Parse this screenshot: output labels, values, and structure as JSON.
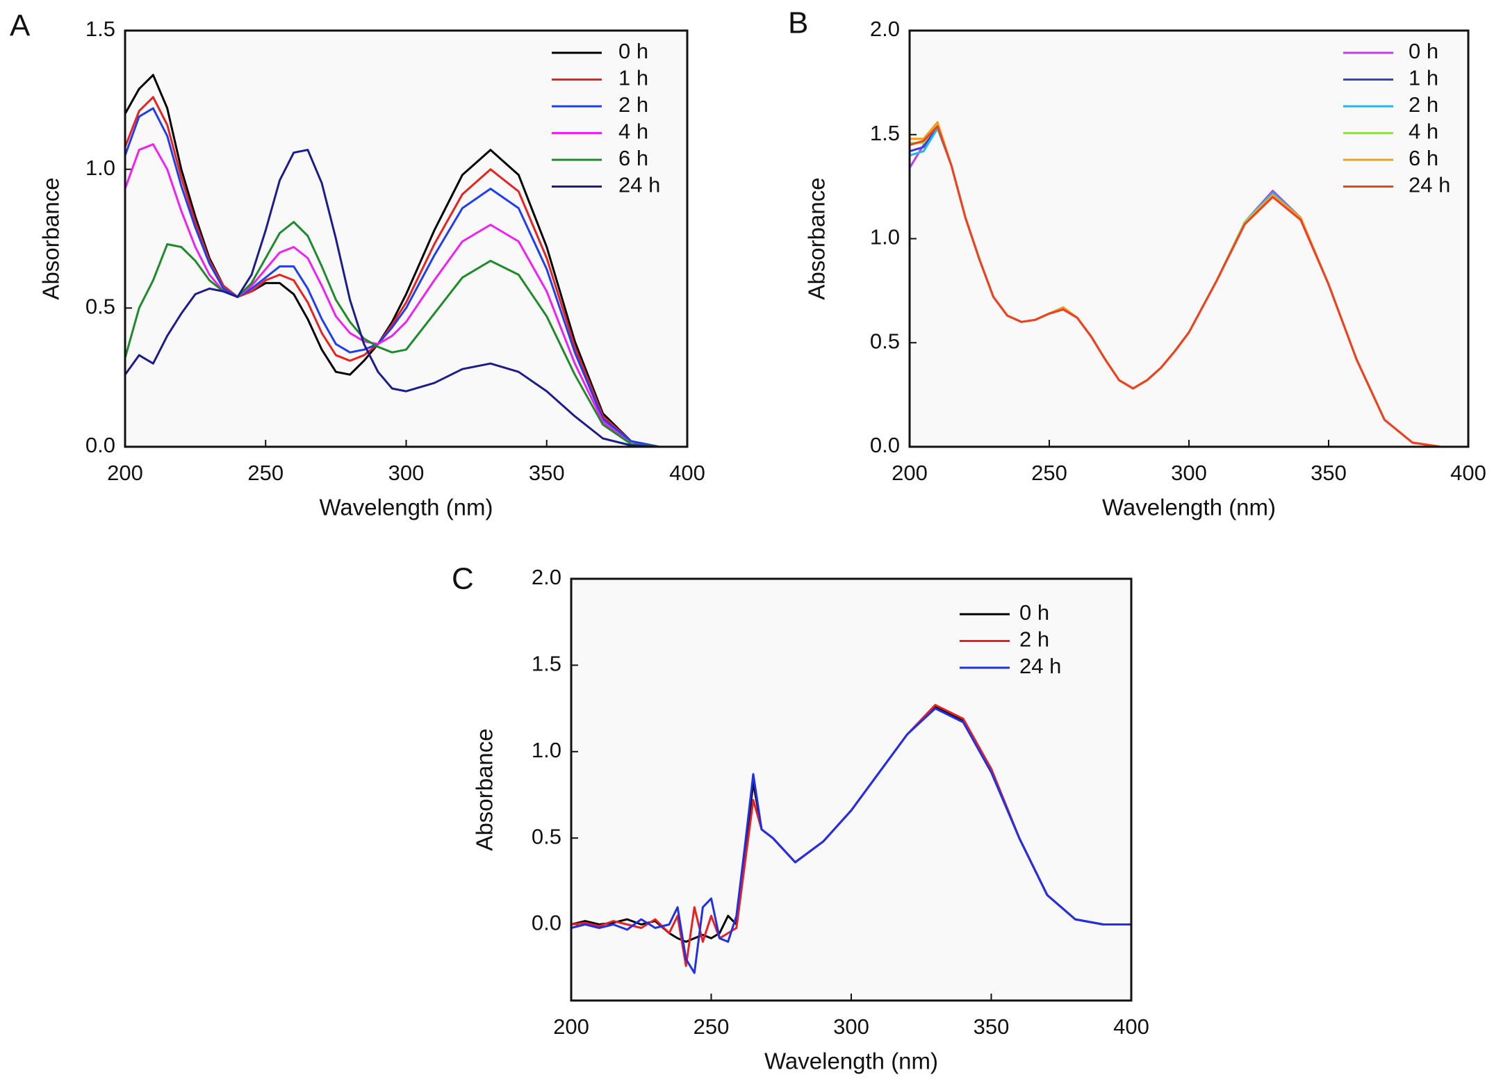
{
  "chart_data": [
    {
      "type": "line",
      "panel_label": "A",
      "xlabel": "Wavelength (nm)",
      "ylabel": "Absorbance",
      "x": [
        200,
        205,
        210,
        215,
        220,
        225,
        230,
        235,
        240,
        245,
        250,
        255,
        260,
        265,
        270,
        275,
        280,
        285,
        290,
        295,
        300,
        310,
        320,
        330,
        340,
        350,
        360,
        370,
        380,
        390,
        400
      ],
      "xlim": [
        200,
        400
      ],
      "xticks": [
        200,
        250,
        300,
        350,
        400
      ],
      "ylim": [
        0,
        1.5
      ],
      "yticks": [
        {
          "value": 0,
          "label": "0.0"
        },
        0.5,
        {
          "value": 1,
          "label": "1.0"
        },
        1.5
      ],
      "legend": "upper right",
      "series": [
        {
          "name": "0 h",
          "color": "#000000",
          "values": [
            1.2,
            1.29,
            1.34,
            1.22,
            1.0,
            0.83,
            0.68,
            0.58,
            0.54,
            0.56,
            0.59,
            0.59,
            0.55,
            0.46,
            0.35,
            0.27,
            0.26,
            0.31,
            0.37,
            0.45,
            0.55,
            0.78,
            0.98,
            1.07,
            0.98,
            0.72,
            0.38,
            0.12,
            0.02,
            0,
            0
          ]
        },
        {
          "name": "1 h",
          "color": "#e8221c",
          "values": [
            1.08,
            1.21,
            1.26,
            1.16,
            0.97,
            0.81,
            0.67,
            0.58,
            0.54,
            0.56,
            0.6,
            0.62,
            0.6,
            0.52,
            0.41,
            0.33,
            0.31,
            0.33,
            0.37,
            0.44,
            0.52,
            0.73,
            0.91,
            1.0,
            0.92,
            0.68,
            0.36,
            0.11,
            0.02,
            0,
            0
          ]
        },
        {
          "name": "2 h",
          "color": "#1f3ef0",
          "values": [
            1.05,
            1.19,
            1.22,
            1.12,
            0.94,
            0.79,
            0.66,
            0.57,
            0.54,
            0.57,
            0.61,
            0.65,
            0.65,
            0.57,
            0.46,
            0.37,
            0.34,
            0.35,
            0.37,
            0.43,
            0.5,
            0.69,
            0.86,
            0.93,
            0.86,
            0.64,
            0.34,
            0.1,
            0.02,
            0,
            0
          ]
        },
        {
          "name": "4 h",
          "color": "#f020f0",
          "values": [
            0.93,
            1.07,
            1.09,
            1.0,
            0.85,
            0.72,
            0.62,
            0.56,
            0.54,
            0.58,
            0.64,
            0.7,
            0.72,
            0.68,
            0.58,
            0.47,
            0.41,
            0.38,
            0.37,
            0.4,
            0.45,
            0.6,
            0.74,
            0.8,
            0.74,
            0.56,
            0.3,
            0.09,
            0.01,
            0,
            0
          ]
        },
        {
          "name": "6 h",
          "color": "#1e8a2a",
          "values": [
            0.32,
            0.5,
            0.6,
            0.73,
            0.72,
            0.67,
            0.6,
            0.56,
            0.54,
            0.59,
            0.68,
            0.77,
            0.81,
            0.76,
            0.65,
            0.53,
            0.45,
            0.39,
            0.36,
            0.34,
            0.35,
            0.48,
            0.61,
            0.67,
            0.62,
            0.47,
            0.26,
            0.08,
            0.01,
            0,
            0
          ]
        },
        {
          "name": "24 h",
          "color": "#1c1c8c",
          "values": [
            0.26,
            0.33,
            0.3,
            0.4,
            0.48,
            0.55,
            0.57,
            0.56,
            0.54,
            0.62,
            0.78,
            0.96,
            1.06,
            1.07,
            0.95,
            0.75,
            0.53,
            0.37,
            0.27,
            0.21,
            0.2,
            0.23,
            0.28,
            0.3,
            0.27,
            0.2,
            0.11,
            0.03,
            0.005,
            0,
            0
          ]
        }
      ]
    },
    {
      "type": "line",
      "panel_label": "B",
      "xlabel": "Wavelength (nm)",
      "ylabel": "Absorbance",
      "x": [
        200,
        205,
        210,
        215,
        220,
        225,
        230,
        235,
        240,
        245,
        250,
        255,
        260,
        265,
        270,
        275,
        280,
        285,
        290,
        295,
        300,
        310,
        320,
        330,
        340,
        350,
        360,
        370,
        380,
        390,
        400
      ],
      "xlim": [
        200,
        400
      ],
      "xticks": [
        200,
        250,
        300,
        350,
        400
      ],
      "ylim": [
        0,
        2
      ],
      "yticks": [
        {
          "value": 0,
          "label": "0.0"
        },
        0.5,
        {
          "value": 1,
          "label": "1.0"
        },
        1.5,
        {
          "value": 2,
          "label": "2.0"
        }
      ],
      "legend": "upper right",
      "series": [
        {
          "name": "0 h",
          "color": "#c040e8",
          "values": [
            1.34,
            1.45,
            1.54,
            1.35,
            1.1,
            0.9,
            0.72,
            0.63,
            0.6,
            0.61,
            0.64,
            0.66,
            0.62,
            0.53,
            0.42,
            0.32,
            0.28,
            0.32,
            0.38,
            0.46,
            0.55,
            0.8,
            1.08,
            1.23,
            1.1,
            0.78,
            0.42,
            0.13,
            0.02,
            0,
            0
          ]
        },
        {
          "name": "1 h",
          "color": "#3b3bd8",
          "values": [
            1.42,
            1.44,
            1.54,
            1.35,
            1.1,
            0.9,
            0.72,
            0.63,
            0.6,
            0.61,
            0.64,
            0.66,
            0.62,
            0.53,
            0.42,
            0.32,
            0.28,
            0.32,
            0.38,
            0.46,
            0.55,
            0.8,
            1.08,
            1.22,
            1.1,
            0.78,
            0.42,
            0.13,
            0.02,
            0,
            0
          ]
        },
        {
          "name": "2 h",
          "color": "#20b8e8",
          "values": [
            1.4,
            1.42,
            1.53,
            1.35,
            1.1,
            0.9,
            0.72,
            0.63,
            0.6,
            0.61,
            0.64,
            0.66,
            0.62,
            0.53,
            0.42,
            0.32,
            0.28,
            0.32,
            0.38,
            0.46,
            0.55,
            0.8,
            1.08,
            1.22,
            1.1,
            0.78,
            0.42,
            0.13,
            0.02,
            0,
            0
          ]
        },
        {
          "name": "4 h",
          "color": "#90e050",
          "values": [
            1.46,
            1.46,
            1.55,
            1.35,
            1.1,
            0.9,
            0.72,
            0.63,
            0.6,
            0.61,
            0.64,
            0.67,
            0.62,
            0.53,
            0.42,
            0.32,
            0.28,
            0.32,
            0.38,
            0.46,
            0.55,
            0.8,
            1.08,
            1.21,
            1.1,
            0.78,
            0.42,
            0.13,
            0.02,
            0,
            0
          ]
        },
        {
          "name": "6 h",
          "color": "#f0a020",
          "values": [
            1.48,
            1.48,
            1.56,
            1.35,
            1.1,
            0.9,
            0.72,
            0.63,
            0.6,
            0.61,
            0.64,
            0.67,
            0.62,
            0.53,
            0.42,
            0.32,
            0.28,
            0.32,
            0.38,
            0.46,
            0.55,
            0.8,
            1.07,
            1.21,
            1.1,
            0.78,
            0.42,
            0.13,
            0.02,
            0,
            0
          ]
        },
        {
          "name": "24 h",
          "color": "#f04020",
          "values": [
            1.45,
            1.47,
            1.54,
            1.35,
            1.1,
            0.9,
            0.72,
            0.63,
            0.6,
            0.61,
            0.64,
            0.66,
            0.62,
            0.53,
            0.42,
            0.32,
            0.28,
            0.32,
            0.38,
            0.46,
            0.55,
            0.8,
            1.07,
            1.2,
            1.09,
            0.78,
            0.42,
            0.13,
            0.02,
            0,
            0
          ]
        }
      ]
    },
    {
      "type": "line",
      "panel_label": "C",
      "xlabel": "Wavelength (nm)",
      "ylabel": "Absorbance",
      "x": [
        200,
        205,
        210,
        215,
        220,
        225,
        230,
        235,
        238,
        241,
        244,
        247,
        250,
        253,
        256,
        259,
        262,
        265,
        268,
        272,
        280,
        290,
        300,
        310,
        320,
        330,
        340,
        350,
        360,
        370,
        380,
        390,
        400
      ],
      "xlim": [
        200,
        400
      ],
      "xticks": [
        200,
        250,
        300,
        350,
        400
      ],
      "ylim": [
        -0.44,
        2
      ],
      "yticks": [
        {
          "value": 0,
          "label": "0.0"
        },
        0.5,
        {
          "value": 1,
          "label": "1.0"
        },
        1.5,
        {
          "value": 2,
          "label": "2.0"
        }
      ],
      "legend": "upper right",
      "series": [
        {
          "name": "0 h",
          "color": "#000000",
          "values": [
            0,
            0.02,
            0,
            0.01,
            0.03,
            0,
            0.02,
            -0.05,
            -0.08,
            -0.1,
            -0.08,
            -0.06,
            -0.08,
            -0.05,
            0.05,
            0,
            0.4,
            0.82,
            0.55,
            0.5,
            0.36,
            0.48,
            0.66,
            0.88,
            1.1,
            1.26,
            1.18,
            0.9,
            0.5,
            0.17,
            0.03,
            0,
            0
          ]
        },
        {
          "name": "2 h",
          "color": "#e82020",
          "values": [
            0,
            0.01,
            -0.01,
            0.02,
            0,
            -0.02,
            0.03,
            -0.05,
            0.05,
            -0.24,
            0.1,
            -0.1,
            0.05,
            -0.08,
            -0.05,
            -0.02,
            0.35,
            0.72,
            0.55,
            0.5,
            0.36,
            0.48,
            0.66,
            0.88,
            1.1,
            1.27,
            1.19,
            0.9,
            0.5,
            0.17,
            0.03,
            0,
            0
          ]
        },
        {
          "name": "24 h",
          "color": "#2030e8",
          "values": [
            -0.02,
            0,
            -0.02,
            0,
            -0.03,
            0.03,
            -0.02,
            0,
            0.1,
            -0.2,
            -0.28,
            0.1,
            0.15,
            -0.08,
            -0.1,
            0.05,
            0.45,
            0.87,
            0.55,
            0.5,
            0.36,
            0.48,
            0.66,
            0.88,
            1.1,
            1.25,
            1.17,
            0.88,
            0.5,
            0.17,
            0.03,
            0,
            0
          ]
        }
      ]
    }
  ]
}
